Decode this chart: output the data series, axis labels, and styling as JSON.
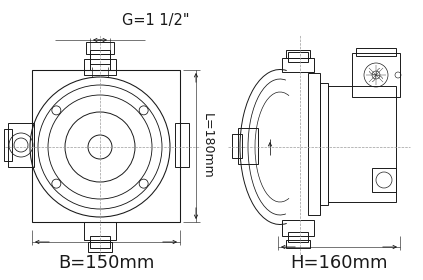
{
  "bg_color": "#ffffff",
  "line_color": "#1a1a1a",
  "dashed_color": "#999999",
  "label_G": "G=1 1/2\"",
  "label_L": "L=180mm",
  "label_B": "B=150mm",
  "label_H": "H=160mm",
  "fig_width": 4.23,
  "fig_height": 2.8,
  "dpi": 100
}
